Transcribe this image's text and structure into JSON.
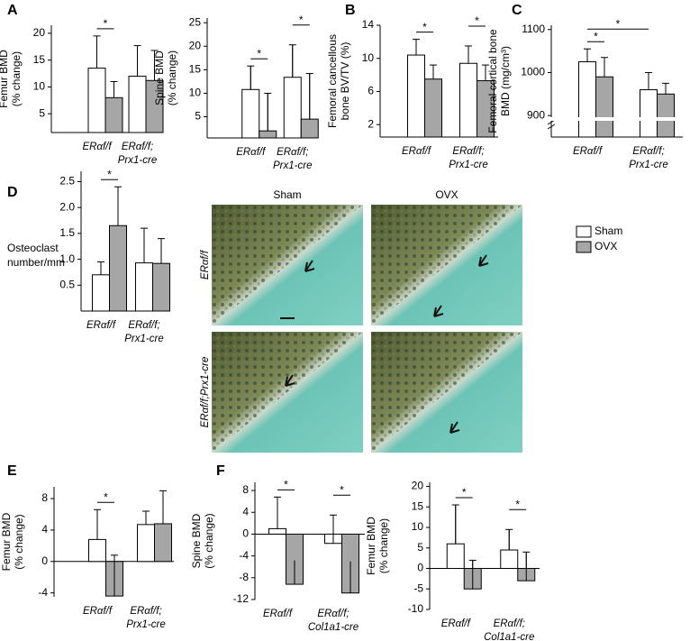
{
  "panels": [
    "A",
    "B",
    "C",
    "D",
    "E",
    "F"
  ],
  "legend": {
    "series": [
      {
        "name": "Sham",
        "color": "#ffffff"
      },
      {
        "name": "OVX",
        "color": "#a6a6a6"
      }
    ]
  },
  "micrographs": {
    "columns": [
      "Sham",
      "OVX"
    ],
    "rows": [
      "ERαf/f",
      "ERαf/f;Prx1-cre"
    ]
  },
  "chart_data": [
    {
      "type": "bar",
      "ylabel": [
        "Femur BMD",
        "(% change)"
      ],
      "categories": [
        [
          "ERαf/f"
        ],
        [
          "ERαf/f;",
          "Prx1-cre"
        ]
      ],
      "series": [
        {
          "color": "#ffffff",
          "values": [
            13.5,
            12
          ],
          "errors": [
            6,
            5.7
          ]
        },
        {
          "color": "#a6a6a6",
          "values": [
            8,
            11.2
          ],
          "errors": [
            3,
            5.6
          ]
        }
      ],
      "ylim": [
        1.5,
        21.5
      ],
      "yticks": [
        5,
        10,
        15,
        20
      ],
      "significance": [
        {
          "label": "*",
          "bars": [
            [
              0,
              0
            ],
            [
              0,
              1
            ]
          ]
        }
      ]
    },
    {
      "type": "bar",
      "ylabel": [
        "Spine BMD",
        "(% change)"
      ],
      "categories": [
        [
          "ERαf/f"
        ],
        [
          "ERαf/f;",
          "Prx1-cre"
        ]
      ],
      "series": [
        {
          "color": "#ffffff",
          "values": [
            10.8,
            13.4
          ],
          "errors": [
            5,
            6.9
          ]
        },
        {
          "color": "#a6a6a6",
          "values": [
            2,
            4.5
          ],
          "errors": [
            8,
            9.7
          ]
        }
      ],
      "ylim": [
        0.5,
        26
      ],
      "yticks": [
        5,
        10,
        15,
        20,
        25
      ],
      "significance": [
        {
          "label": "*",
          "bars": [
            [
              0,
              0
            ],
            [
              0,
              1
            ]
          ]
        },
        {
          "label": "*",
          "bars": [
            [
              1,
              0
            ],
            [
              1,
              1
            ]
          ]
        }
      ]
    },
    {
      "type": "bar",
      "ylabel": [
        "Femoral cancellous",
        "bone BV/TV (%)"
      ],
      "categories": [
        [
          "ERαf/f"
        ],
        [
          "ERαf/f;",
          "Prx1-cre"
        ]
      ],
      "series": [
        {
          "color": "#ffffff",
          "values": [
            10.4,
            9.4
          ],
          "errors": [
            1.9,
            2.1
          ]
        },
        {
          "color": "#a6a6a6",
          "values": [
            7.5,
            7.3
          ],
          "errors": [
            1.7,
            1.9
          ]
        }
      ],
      "ylim": [
        0.5,
        14
      ],
      "yticks": [
        2,
        6,
        10,
        14
      ],
      "significance": [
        {
          "label": "*",
          "bars": [
            [
              0,
              0
            ],
            [
              0,
              1
            ]
          ]
        },
        {
          "label": "*",
          "bars": [
            [
              1,
              0
            ],
            [
              1,
              1
            ]
          ]
        }
      ]
    },
    {
      "type": "bar",
      "ylabel": [
        "Femoral cortical bone",
        "BMD (mg/cm³)"
      ],
      "axis_break": true,
      "categories": [
        [
          "ERαf/f"
        ],
        [
          "ERαf/f;",
          "Prx1-cre"
        ]
      ],
      "series": [
        {
          "color": "#ffffff",
          "values": [
            1025,
            960
          ],
          "errors": [
            30,
            40
          ]
        },
        {
          "color": "#a6a6a6",
          "values": [
            990,
            950
          ],
          "errors": [
            45,
            25
          ]
        }
      ],
      "ylim": [
        850,
        1110
      ],
      "yticks": [
        900,
        1000,
        1100
      ],
      "significance": [
        {
          "label": "*",
          "bars": [
            [
              0,
              0
            ],
            [
              0,
              1
            ]
          ]
        },
        {
          "label": "*",
          "bars": [
            [
              0,
              0
            ],
            [
              1,
              0
            ]
          ]
        }
      ]
    },
    {
      "type": "bar",
      "ylabel": [
        "Osteoclast",
        "number/mm"
      ],
      "categories": [
        [
          "ERαf/f"
        ],
        [
          "ERαf/f;",
          "Prx1-cre"
        ]
      ],
      "series": [
        {
          "color": "#ffffff",
          "values": [
            0.7,
            0.93
          ],
          "errors": [
            0.25,
            0.67
          ]
        },
        {
          "color": "#a6a6a6",
          "values": [
            1.65,
            0.92
          ],
          "errors": [
            0.75,
            0.48
          ]
        }
      ],
      "ylim": [
        0,
        2.7
      ],
      "yticks": [
        0.5,
        {
          "value": 1,
          "label": "1.0"
        },
        1.5,
        {
          "value": 2,
          "label": "2.0"
        },
        2.5
      ],
      "significance": [
        {
          "label": "*",
          "bars": [
            [
              0,
              0
            ],
            [
              0,
              1
            ]
          ]
        }
      ]
    },
    {
      "type": "bar",
      "ylabel": [
        "Femur BMD",
        "(% change)"
      ],
      "categories": [
        [
          "ERαf/f"
        ],
        [
          "ERαf/f;",
          "Prx1-cre"
        ]
      ],
      "series": [
        {
          "color": "#ffffff",
          "values": [
            2.8,
            4.7
          ],
          "errors": [
            3.8,
            1.7
          ]
        },
        {
          "color": "#a6a6a6",
          "values": [
            -4.4,
            4.8
          ],
          "errors": [
            5.2,
            4.2
          ]
        }
      ],
      "ylim": [
        -4.5,
        9.5
      ],
      "yticks": [
        -4,
        0,
        4,
        8
      ],
      "significance": [
        {
          "label": "*",
          "bars": [
            [
              0,
              0
            ],
            [
              0,
              1
            ]
          ]
        }
      ]
    },
    {
      "type": "bar",
      "ylabel": [
        "Spine BMD",
        "(% change)"
      ],
      "categories": [
        [
          "ERαf/f"
        ],
        [
          "ERαf/f;",
          "Col1a1-cre"
        ]
      ],
      "series": [
        {
          "color": "#ffffff",
          "values": [
            1,
            -1.7
          ],
          "errors": [
            5.8,
            5.2
          ]
        },
        {
          "color": "#a6a6a6",
          "values": [
            -9.2,
            -10.8
          ],
          "errors": [
            4.4,
            5.8
          ]
        }
      ],
      "ylim": [
        -12,
        9.5
      ],
      "yticks": [
        -12,
        -8,
        -4,
        0,
        4,
        8
      ],
      "significance": [
        {
          "label": "*",
          "bars": [
            [
              0,
              0
            ],
            [
              0,
              1
            ]
          ]
        },
        {
          "label": "*",
          "bars": [
            [
              1,
              0
            ],
            [
              1,
              1
            ]
          ]
        }
      ]
    },
    {
      "type": "bar",
      "ylabel": [
        "Femur BMD",
        "(% change)"
      ],
      "categories": [
        [
          "ERαf/f"
        ],
        [
          "ERαf/f;",
          "Col1a1-cre"
        ]
      ],
      "series": [
        {
          "color": "#ffffff",
          "values": [
            6,
            4.5
          ],
          "errors": [
            9.5,
            5
          ]
        },
        {
          "color": "#a6a6a6",
          "values": [
            -5,
            -3
          ],
          "errors": [
            7,
            7
          ]
        }
      ],
      "ylim": [
        -10,
        21
      ],
      "yticks": [
        -10,
        -5,
        0,
        5,
        10,
        15,
        20
      ],
      "significance": [
        {
          "label": "*",
          "bars": [
            [
              0,
              0
            ],
            [
              0,
              1
            ]
          ]
        },
        {
          "label": "*",
          "bars": [
            [
              1,
              0
            ],
            [
              1,
              1
            ]
          ]
        }
      ]
    }
  ]
}
